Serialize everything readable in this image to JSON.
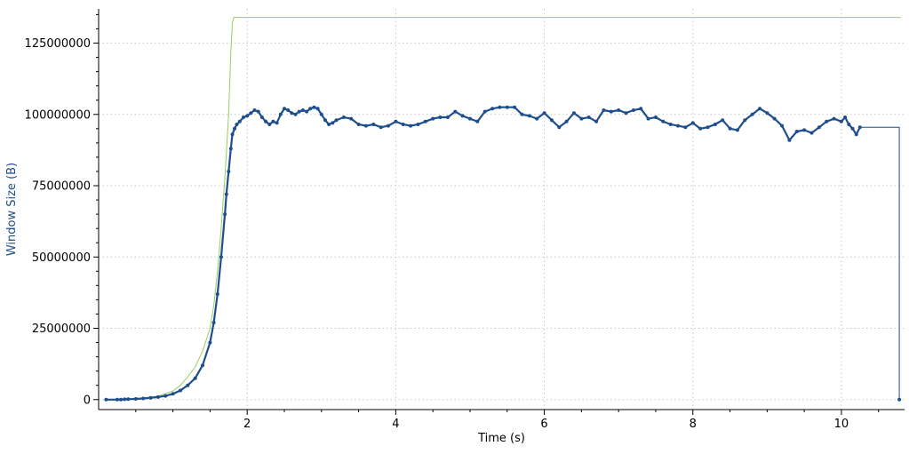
{
  "chart_data": {
    "type": "line",
    "xlabel": "Time (s)",
    "ylabel": "Window Size (B)",
    "xlim": [
      0,
      10.85
    ],
    "ylim": [
      -3500000,
      137000000
    ],
    "xticks": [
      2,
      4,
      6,
      8,
      10
    ],
    "yticks": [
      0,
      25000000,
      50000000,
      75000000,
      100000000,
      125000000
    ],
    "xtick_labels": [
      "2",
      "4",
      "6",
      "8",
      "10"
    ],
    "ytick_labels": [
      "0",
      "25000000",
      "50000000",
      "75000000",
      "100000000",
      "125000000"
    ],
    "grid": true,
    "colors": {
      "receive_window": "#99cc66",
      "bytes_out": "#1f4e8c",
      "axis": "#000000",
      "grid": "#c8c8c8",
      "ylabel": "#1f4e8c"
    },
    "series": [
      {
        "style": "line",
        "color": "#99cc66",
        "x": [
          0.1,
          0.5,
          0.8,
          1.0,
          1.1,
          1.2,
          1.3,
          1.4,
          1.5,
          1.55,
          1.6,
          1.65,
          1.7,
          1.75,
          1.78,
          1.8,
          1.82,
          1.85,
          1.9,
          2.0,
          4.0,
          6.0,
          8.0,
          10.0,
          10.8
        ],
        "y": [
          0,
          300000,
          1200000,
          3000000,
          5000000,
          8000000,
          11500000,
          17000000,
          25000000,
          33000000,
          45000000,
          60000000,
          78000000,
          100000000,
          122000000,
          132000000,
          134000000,
          134000000,
          134000000,
          134000000,
          134000000,
          134000000,
          134000000,
          134000000,
          134000000
        ]
      },
      {
        "style": "dots",
        "color": "#1f4e8c",
        "x": [
          0.1,
          0.25,
          0.3,
          0.35,
          0.4,
          0.5,
          0.6,
          0.7,
          0.8,
          0.9,
          1.0,
          1.1,
          1.2,
          1.3,
          1.4,
          1.5,
          1.55,
          1.6,
          1.65,
          1.7,
          1.72,
          1.75,
          1.78,
          1.8,
          1.83,
          1.86,
          1.9,
          1.95,
          2.0,
          2.05,
          2.1,
          2.15,
          2.2,
          2.25,
          2.3,
          2.35,
          2.4,
          2.45,
          2.5,
          2.55,
          2.6,
          2.65,
          2.7,
          2.75,
          2.8,
          2.85,
          2.9,
          2.95,
          3.0,
          3.05,
          3.1,
          3.15,
          3.2,
          3.3,
          3.4,
          3.5,
          3.6,
          3.7,
          3.8,
          3.9,
          4.0,
          4.1,
          4.2,
          4.3,
          4.4,
          4.5,
          4.6,
          4.7,
          4.8,
          4.9,
          5.0,
          5.1,
          5.2,
          5.3,
          5.4,
          5.5,
          5.6,
          5.7,
          5.8,
          5.9,
          6.0,
          6.1,
          6.2,
          6.3,
          6.4,
          6.5,
          6.6,
          6.7,
          6.8,
          6.9,
          7.0,
          7.1,
          7.2,
          7.3,
          7.4,
          7.5,
          7.6,
          7.7,
          7.8,
          7.9,
          8.0,
          8.1,
          8.2,
          8.3,
          8.4,
          8.5,
          8.6,
          8.7,
          8.8,
          8.9,
          9.0,
          9.1,
          9.2,
          9.3,
          9.4,
          9.5,
          9.6,
          9.7,
          9.8,
          9.9,
          10.0,
          10.05,
          10.1,
          10.15,
          10.2,
          10.25
        ],
        "y": [
          0,
          0,
          0,
          100000,
          150000,
          250000,
          400000,
          600000,
          900000,
          1300000,
          2000000,
          3200000,
          5000000,
          7500000,
          12000000,
          20000000,
          27000000,
          37000000,
          50000000,
          65000000,
          72000000,
          80000000,
          88000000,
          93000000,
          95000000,
          96500000,
          97500000,
          99000000,
          99500000,
          100500000,
          101500000,
          101000000,
          99000000,
          97500000,
          96500000,
          97500000,
          97000000,
          100000000,
          102000000,
          101500000,
          100500000,
          100000000,
          101000000,
          101500000,
          101000000,
          102000000,
          102500000,
          102000000,
          100000000,
          98000000,
          96500000,
          97000000,
          98000000,
          99000000,
          98500000,
          96500000,
          96000000,
          96500000,
          95500000,
          96000000,
          97500000,
          96500000,
          96000000,
          96500000,
          97500000,
          98500000,
          99000000,
          99000000,
          101000000,
          99500000,
          98500000,
          97500000,
          101000000,
          102000000,
          102500000,
          102500000,
          102500000,
          100000000,
          99500000,
          98500000,
          100500000,
          98000000,
          95500000,
          97500000,
          100500000,
          98500000,
          99000000,
          97500000,
          101500000,
          101000000,
          101500000,
          100500000,
          101500000,
          102000000,
          98500000,
          99000000,
          97500000,
          96500000,
          96000000,
          95500000,
          97000000,
          95000000,
          95500000,
          96500000,
          98000000,
          95000000,
          94500000,
          98000000,
          100000000,
          102000000,
          100500000,
          98500000,
          96000000,
          91000000,
          94000000,
          94500000,
          93500000,
          95500000,
          97500000,
          98500000,
          97500000,
          99000000,
          96500000,
          95000000,
          93000000,
          95500000
        ]
      },
      {
        "style": "line",
        "color": "#1f4e8c",
        "x": [
          10.25,
          10.78,
          10.78
        ],
        "y": [
          95500000,
          95500000,
          0
        ]
      },
      {
        "style": "dots",
        "color": "#1f4e8c",
        "x": [
          10.78
        ],
        "y": [
          0
        ]
      }
    ]
  }
}
